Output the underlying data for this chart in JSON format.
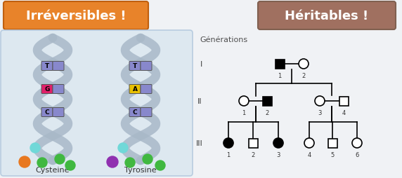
{
  "title_left": "Irréversibles !",
  "title_right": "Héritables !",
  "title_left_bg": "#E8832A",
  "title_right_bg": "#A07060",
  "title_text_color": "#FFFFFF",
  "bg_color": "#F0F2F5",
  "generations_label": "Générations",
  "dna_left_label": "Cysteine",
  "dna_right_label": "Tyrosine",
  "dna_box_color": "#DDE8F0",
  "dna_box_edge": "#B8CCE0"
}
